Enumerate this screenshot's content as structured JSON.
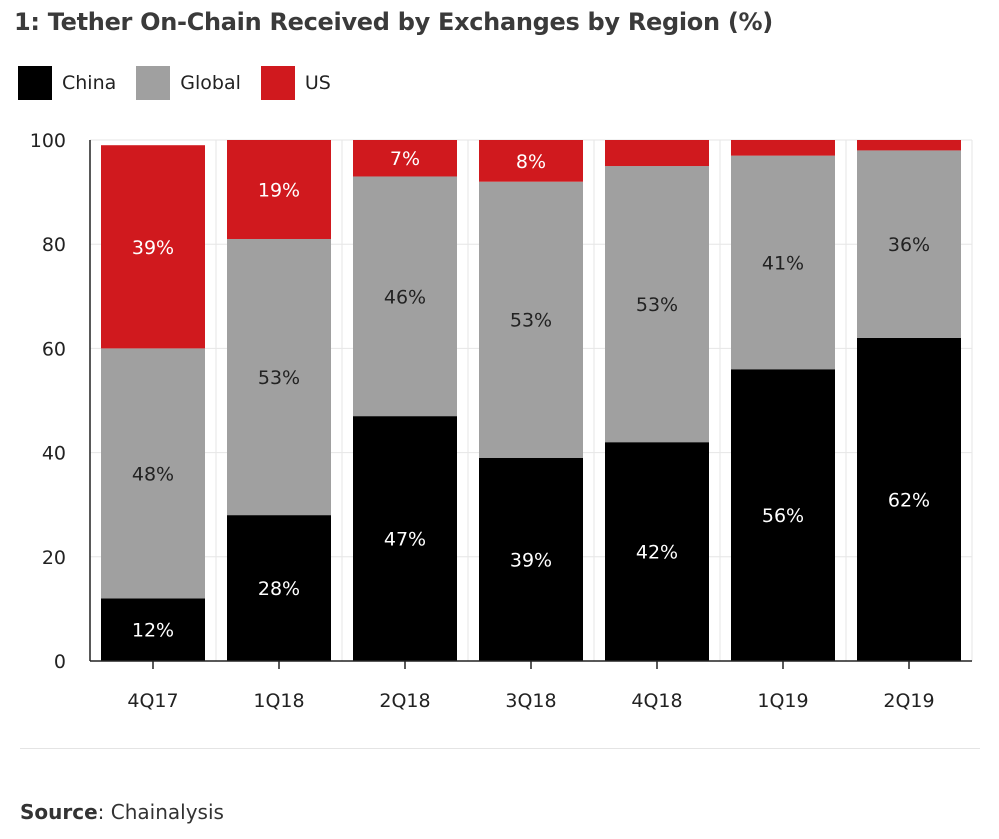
{
  "title": "1: Tether On-Chain Received by Exchanges by Region (%)",
  "source": {
    "label": "Source",
    "separator": ": ",
    "value": "Chainalysis"
  },
  "chart_data": {
    "type": "bar",
    "stacked": true,
    "title": "1: Tether On-Chain Received by Exchanges by Region (%)",
    "categories": [
      "4Q17",
      "1Q18",
      "2Q18",
      "3Q18",
      "4Q18",
      "1Q19",
      "2Q19"
    ],
    "series": [
      {
        "name": "China",
        "color": "#000000",
        "label_color": "#ffffff",
        "values": [
          12,
          28,
          47,
          39,
          42,
          56,
          62
        ],
        "data_labels": [
          "12%",
          "28%",
          "47%",
          "39%",
          "42%",
          "56%",
          "62%"
        ]
      },
      {
        "name": "Global",
        "color": "#a0a0a0",
        "label_color": "#222222",
        "values": [
          48,
          53,
          46,
          53,
          53,
          41,
          36
        ],
        "data_labels": [
          "48%",
          "53%",
          "46%",
          "53%",
          "53%",
          "41%",
          "36%"
        ]
      },
      {
        "name": "US",
        "color": "#d0191e",
        "label_color": "#ffffff",
        "values": [
          39,
          19,
          7,
          8,
          5,
          3,
          3
        ],
        "data_labels": [
          "39%",
          "19%",
          "7%",
          "8%",
          "",
          "",
          ""
        ]
      }
    ],
    "ylim": [
      0,
      100
    ],
    "yticks": [
      0,
      20,
      40,
      60,
      80,
      100
    ],
    "grid": true,
    "legend": "top-left",
    "xlabel": "",
    "ylabel": ""
  }
}
